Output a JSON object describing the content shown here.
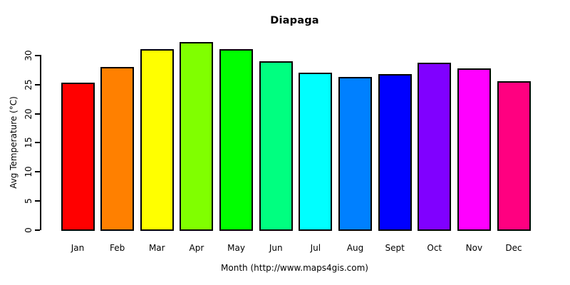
{
  "chart_data": {
    "type": "bar",
    "title": "Diapaga",
    "xlabel": "Month (http://www.maps4gis.com)",
    "ylabel": "Avg Temperature (°C)",
    "categories": [
      "Jan",
      "Feb",
      "Mar",
      "Apr",
      "May",
      "Jun",
      "Jul",
      "Aug",
      "Sept",
      "Oct",
      "Nov",
      "Dec"
    ],
    "values": [
      25.4,
      28.1,
      31.1,
      32.4,
      31.2,
      29.0,
      27.1,
      26.3,
      26.8,
      28.8,
      27.8,
      25.6
    ],
    "bar_colors": [
      "#FF0000",
      "#FF8000",
      "#FFFF00",
      "#80FF00",
      "#00FF00",
      "#00FF80",
      "#00FFFF",
      "#0080FF",
      "#0000FF",
      "#8000FF",
      "#FF00FF",
      "#FF0080"
    ],
    "bar_border_color": "#000000",
    "ylim": [
      0,
      30
    ],
    "y_ticks": [
      0,
      5,
      10,
      15,
      20,
      25,
      30
    ],
    "grid": false,
    "legend": null,
    "axis_color": "#000000",
    "text_color": "#000000",
    "background": "#FFFFFF"
  }
}
